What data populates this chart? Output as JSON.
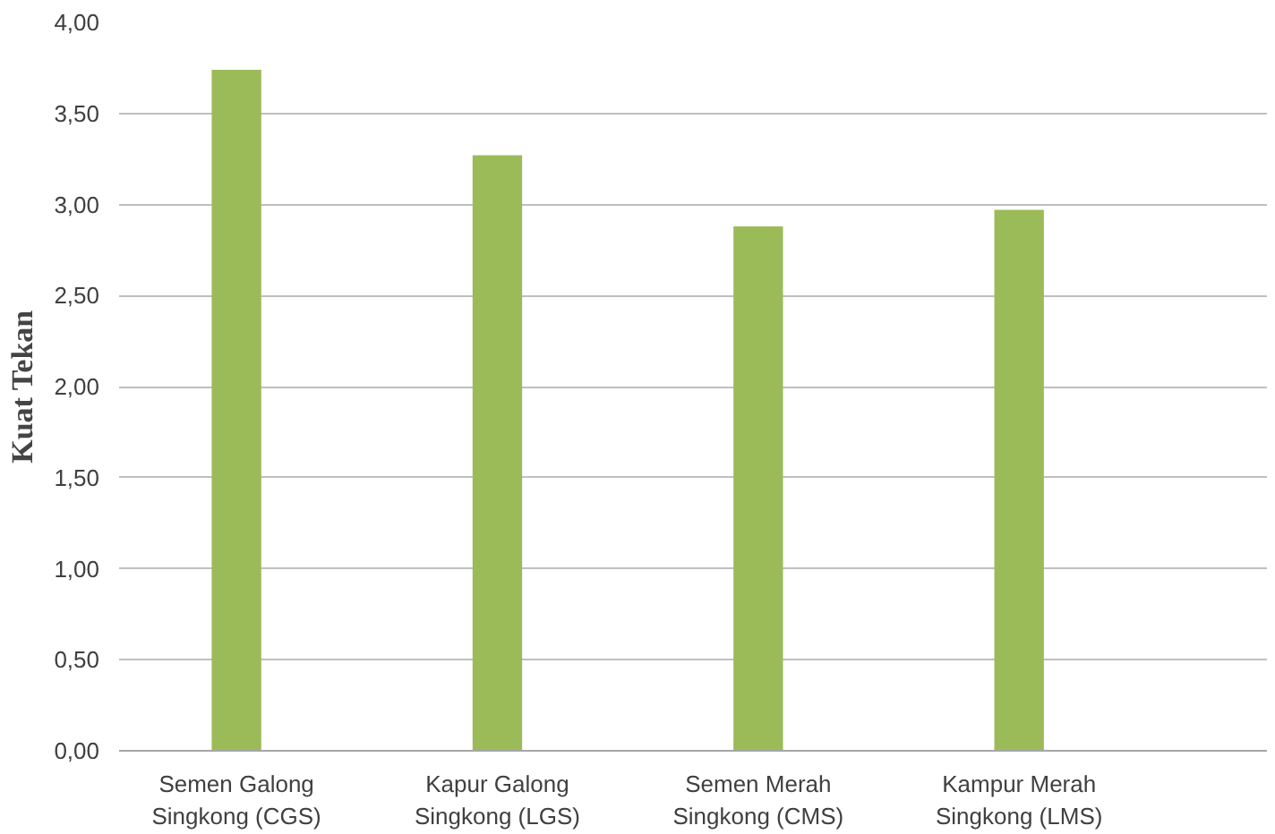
{
  "chart_data": {
    "type": "bar",
    "ylabel": "Kuat Tekan",
    "categories": [
      "Semen Galong\nSingkong (CGS)",
      "Kapur Galong\nSingkong (LGS)",
      "Semen Merah\nSingkong (CMS)",
      "Kampur Merah\nSingkong (LMS)"
    ],
    "values": [
      3.74,
      3.27,
      2.88,
      2.97
    ],
    "color": "#9bbb59",
    "ylim": [
      0,
      4
    ],
    "yticks": [
      {
        "value": 0,
        "label": "0,00"
      },
      {
        "value": 0.5,
        "label": "0,50"
      },
      {
        "value": 1,
        "label": "1,00"
      },
      {
        "value": 1.5,
        "label": "1,50"
      },
      {
        "value": 2,
        "label": "2,00"
      },
      {
        "value": 2.5,
        "label": "2,50"
      },
      {
        "value": 3,
        "label": "3,00"
      },
      {
        "value": 3.5,
        "label": "3,50"
      },
      {
        "value": 4,
        "label": "4,00"
      }
    ],
    "grid": "y"
  }
}
